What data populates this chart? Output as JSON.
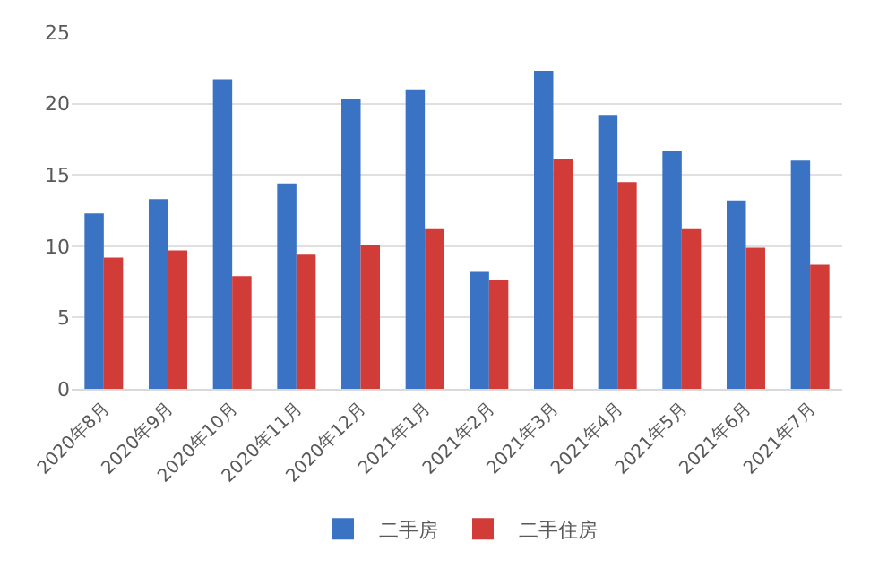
{
  "chart_data": {
    "type": "bar",
    "categories": [
      "2020年8月",
      "2020年9月",
      "2020年10月",
      "2020年11月",
      "2020年12月",
      "2021年1月",
      "2021年2月",
      "2021年3月",
      "2021年4月",
      "2021年5月",
      "2021年6月",
      "2021年7月"
    ],
    "series": [
      {
        "name": "二手房",
        "color": "#3a73c4",
        "values": [
          12.3,
          13.3,
          21.7,
          14.4,
          20.3,
          21.0,
          8.2,
          22.3,
          19.2,
          16.7,
          13.2,
          16.0
        ]
      },
      {
        "name": "二手住房",
        "color": "#d13b38",
        "values": [
          9.2,
          9.7,
          7.9,
          9.4,
          10.1,
          11.2,
          7.6,
          16.1,
          14.5,
          11.2,
          9.9,
          8.7
        ]
      }
    ],
    "ylim": [
      0,
      25
    ],
    "yticks": [
      0,
      5,
      10,
      15,
      20,
      25
    ],
    "grid": "y",
    "legend": "bottom"
  }
}
